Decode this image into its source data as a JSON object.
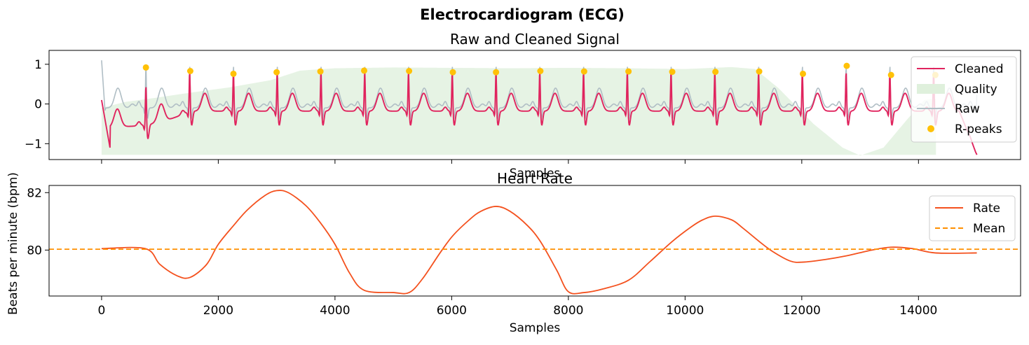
{
  "figure": {
    "title": "Electrocardiogram (ECG)"
  },
  "chart_data": [
    {
      "type": "line",
      "title": "Raw and Cleaned Signal",
      "xlabel": "Samples",
      "ylabel": "",
      "xlim": [
        -900,
        15750
      ],
      "ylim": [
        -1.4,
        1.35
      ],
      "xticks": [
        0,
        2000,
        4000,
        6000,
        8000,
        10000,
        12000,
        14000
      ],
      "xtick_labels_visible": false,
      "yticks": [
        -1,
        0,
        1
      ],
      "ytick_labels": [
        "−1",
        "0",
        "1"
      ],
      "legend": {
        "placement": "top-right",
        "entries": [
          {
            "label": "Cleaned",
            "kind": "line",
            "color": "#e0245e"
          },
          {
            "label": "Quality",
            "kind": "patch",
            "color": "#dff0dc"
          },
          {
            "label": "Raw",
            "kind": "line",
            "color": "#b0bec5"
          },
          {
            "label": "R-peaks",
            "kind": "marker",
            "color": "#ffc107"
          }
        ]
      },
      "signal": {
        "start": 0,
        "end": 15000,
        "beat_interval": 750,
        "first_r_peak": 760,
        "raw_initial_value": 1.1,
        "raw_peak_value": 1.18,
        "raw_min_value": -0.25,
        "cleaned_end_value": -1.28
      },
      "quality_band": {
        "lower": -1.28,
        "upper_points": [
          [
            0,
            -0.1
          ],
          [
            400,
            0.05
          ],
          [
            900,
            0.15
          ],
          [
            1500,
            0.28
          ],
          [
            2200,
            0.42
          ],
          [
            2900,
            0.6
          ],
          [
            3400,
            0.84
          ],
          [
            4000,
            0.9
          ],
          [
            5000,
            0.92
          ],
          [
            6000,
            0.91
          ],
          [
            7000,
            0.9
          ],
          [
            8000,
            0.91
          ],
          [
            9000,
            0.9
          ],
          [
            10000,
            0.88
          ],
          [
            10800,
            0.93
          ],
          [
            11200,
            0.88
          ],
          [
            11600,
            0.4
          ],
          [
            12200,
            -0.5
          ],
          [
            12700,
            -1.1
          ],
          [
            13000,
            -1.3
          ],
          [
            13400,
            -1.1
          ],
          [
            13800,
            -0.4
          ],
          [
            14100,
            0.1
          ],
          [
            14200,
            0.12
          ],
          [
            14300,
            0.12
          ]
        ]
      },
      "r_peaks": {
        "x": [
          760,
          1520,
          2260,
          3000,
          3750,
          4500,
          5270,
          6020,
          6760,
          7520,
          8270,
          9030,
          9780,
          10520,
          11270,
          12020,
          12770,
          13530,
          14290
        ],
        "y": [
          0.92,
          0.83,
          0.76,
          0.8,
          0.82,
          0.84,
          0.83,
          0.8,
          0.8,
          0.83,
          0.82,
          0.82,
          0.81,
          0.81,
          0.82,
          0.76,
          0.96,
          0.73,
          0.73
        ]
      },
      "colors": {
        "cleaned": "#e0245e",
        "raw": "#b0bec5",
        "quality": "#e6f3e4",
        "rpeaks": "#ffc107"
      }
    },
    {
      "type": "line",
      "title": "Heart Rate",
      "xlabel": "Samples",
      "ylabel": "Beats per minute (bpm)",
      "xlim": [
        -900,
        15750
      ],
      "ylim": [
        78.4,
        82.25
      ],
      "xticks": [
        0,
        2000,
        4000,
        6000,
        8000,
        10000,
        12000,
        14000
      ],
      "xtick_labels": [
        "0",
        "2000",
        "4000",
        "6000",
        "8000",
        "10000",
        "12000",
        "14000"
      ],
      "yticks": [
        80,
        82
      ],
      "ytick_labels": [
        "80",
        "82"
      ],
      "legend": {
        "placement": "top-right",
        "entries": [
          {
            "label": "Rate",
            "kind": "line",
            "color": "#f4511e"
          },
          {
            "label": "Mean",
            "kind": "dashed",
            "color": "#ff8f00"
          }
        ]
      },
      "series": [
        {
          "name": "Rate",
          "color": "#f4511e",
          "x": [
            0,
            750,
            1000,
            1300,
            1520,
            1800,
            2000,
            2260,
            2500,
            2800,
            3000,
            3200,
            3500,
            3750,
            4000,
            4250,
            4500,
            5000,
            5270,
            5500,
            5800,
            6020,
            6300,
            6500,
            6760,
            7000,
            7300,
            7520,
            7800,
            8000,
            8270,
            8600,
            9030,
            9400,
            9780,
            10100,
            10300,
            10520,
            10800,
            11000,
            11270,
            11500,
            11800,
            12020,
            12400,
            12770,
            13200,
            13530,
            13900,
            14290,
            15000
          ],
          "y": [
            80.05,
            80.05,
            79.5,
            79.1,
            79.05,
            79.5,
            80.2,
            80.85,
            81.4,
            81.9,
            82.07,
            82.0,
            81.55,
            80.95,
            80.2,
            79.2,
            78.6,
            78.52,
            78.52,
            79.0,
            79.9,
            80.5,
            81.05,
            81.35,
            81.52,
            81.35,
            80.85,
            80.3,
            79.3,
            78.55,
            78.52,
            78.65,
            78.95,
            79.6,
            80.3,
            80.8,
            81.05,
            81.18,
            81.05,
            80.75,
            80.3,
            79.95,
            79.62,
            79.58,
            79.67,
            79.8,
            80.0,
            80.1,
            80.05,
            79.9,
            79.9
          ]
        },
        {
          "name": "Mean",
          "color": "#ff8f00",
          "value": 80.03
        }
      ]
    }
  ]
}
